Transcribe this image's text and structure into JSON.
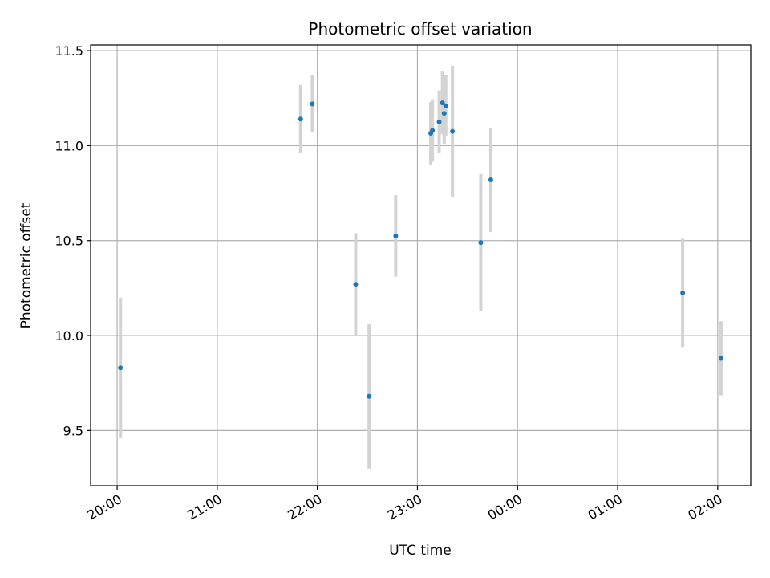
{
  "chart_data": {
    "type": "scatter",
    "title": "Photometric offset variation",
    "xlabel": "UTC time",
    "ylabel": "Photometric offset",
    "grid": true,
    "point_color": "#1f77b4",
    "errorbar_color": "#d3d3d3",
    "xaxis": {
      "unit": "hours since 20:00 UTC",
      "xlim": [
        -0.265,
        6.33
      ],
      "ticks": [
        {
          "value": 0,
          "label": "20:00"
        },
        {
          "value": 1,
          "label": "21:00"
        },
        {
          "value": 2,
          "label": "22:00"
        },
        {
          "value": 3,
          "label": "23:00"
        },
        {
          "value": 4,
          "label": "00:00"
        },
        {
          "value": 5,
          "label": "01:00"
        },
        {
          "value": 6,
          "label": "02:00"
        }
      ]
    },
    "yaxis": {
      "ylim": [
        9.21,
        11.53
      ],
      "ticks": [
        {
          "value": 9.5,
          "label": "9.5"
        },
        {
          "value": 10.0,
          "label": "10.0"
        },
        {
          "value": 10.5,
          "label": "10.5"
        },
        {
          "value": 11.0,
          "label": "11.0"
        },
        {
          "value": 11.5,
          "label": "11.5"
        }
      ]
    },
    "points": [
      {
        "x": 0.033,
        "y": 9.83,
        "err": 0.37
      },
      {
        "x": 1.833,
        "y": 11.14,
        "err": 0.18
      },
      {
        "x": 1.95,
        "y": 11.22,
        "err": 0.15
      },
      {
        "x": 2.383,
        "y": 10.27,
        "err": 0.27
      },
      {
        "x": 2.517,
        "y": 9.68,
        "err": 0.38
      },
      {
        "x": 2.783,
        "y": 10.525,
        "err": 0.215
      },
      {
        "x": 3.133,
        "y": 11.065,
        "err": 0.165
      },
      {
        "x": 3.15,
        "y": 11.08,
        "err": 0.165
      },
      {
        "x": 3.217,
        "y": 11.125,
        "err": 0.165
      },
      {
        "x": 3.25,
        "y": 11.225,
        "err": 0.165
      },
      {
        "x": 3.267,
        "y": 11.17,
        "err": 0.16
      },
      {
        "x": 3.283,
        "y": 11.21,
        "err": 0.16
      },
      {
        "x": 3.35,
        "y": 11.075,
        "err": 0.345
      },
      {
        "x": 3.633,
        "y": 10.49,
        "err": 0.36
      },
      {
        "x": 3.733,
        "y": 10.82,
        "err": 0.275
      },
      {
        "x": 5.65,
        "y": 10.225,
        "err": 0.285
      },
      {
        "x": 6.033,
        "y": 9.88,
        "err": 0.195
      }
    ]
  }
}
